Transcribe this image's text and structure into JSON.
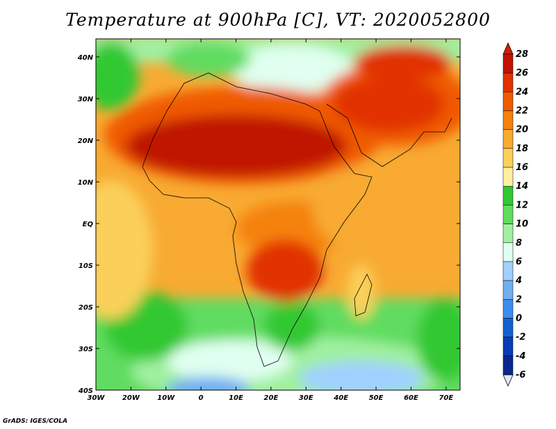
{
  "title": "Temperature at 900hPa [C], VT: 2020052800",
  "credit": "GrADS: IGES/COLA",
  "axes": {
    "lon_labels": [
      "30W",
      "20W",
      "10W",
      "0",
      "10E",
      "20E",
      "30E",
      "40E",
      "50E",
      "60E",
      "70E"
    ],
    "lat_labels": [
      "40N",
      "30N",
      "20N",
      "10N",
      "EQ",
      "10S",
      "20S",
      "30S",
      "40S"
    ]
  },
  "colorbar": {
    "labels": [
      "28",
      "26",
      "24",
      "22",
      "20",
      "18",
      "16",
      "14",
      "12",
      "10",
      "8",
      "6",
      "4",
      "2",
      "0",
      "-2",
      "-4",
      "-6"
    ],
    "colors": [
      "#c01400",
      "#e13200",
      "#f05a00",
      "#f5820a",
      "#f8aa32",
      "#fad05a",
      "#fff0a0",
      "#30c830",
      "#60dc60",
      "#a0f0a0",
      "#e0fff0",
      "#a0d0ff",
      "#70b0f0",
      "#3c8cf0",
      "#1460d2",
      "#0a3cb4",
      "#082890",
      "#0a0a64"
    ],
    "top_color": "#d21e00",
    "bottom_color": "#e6e6ff"
  }
}
